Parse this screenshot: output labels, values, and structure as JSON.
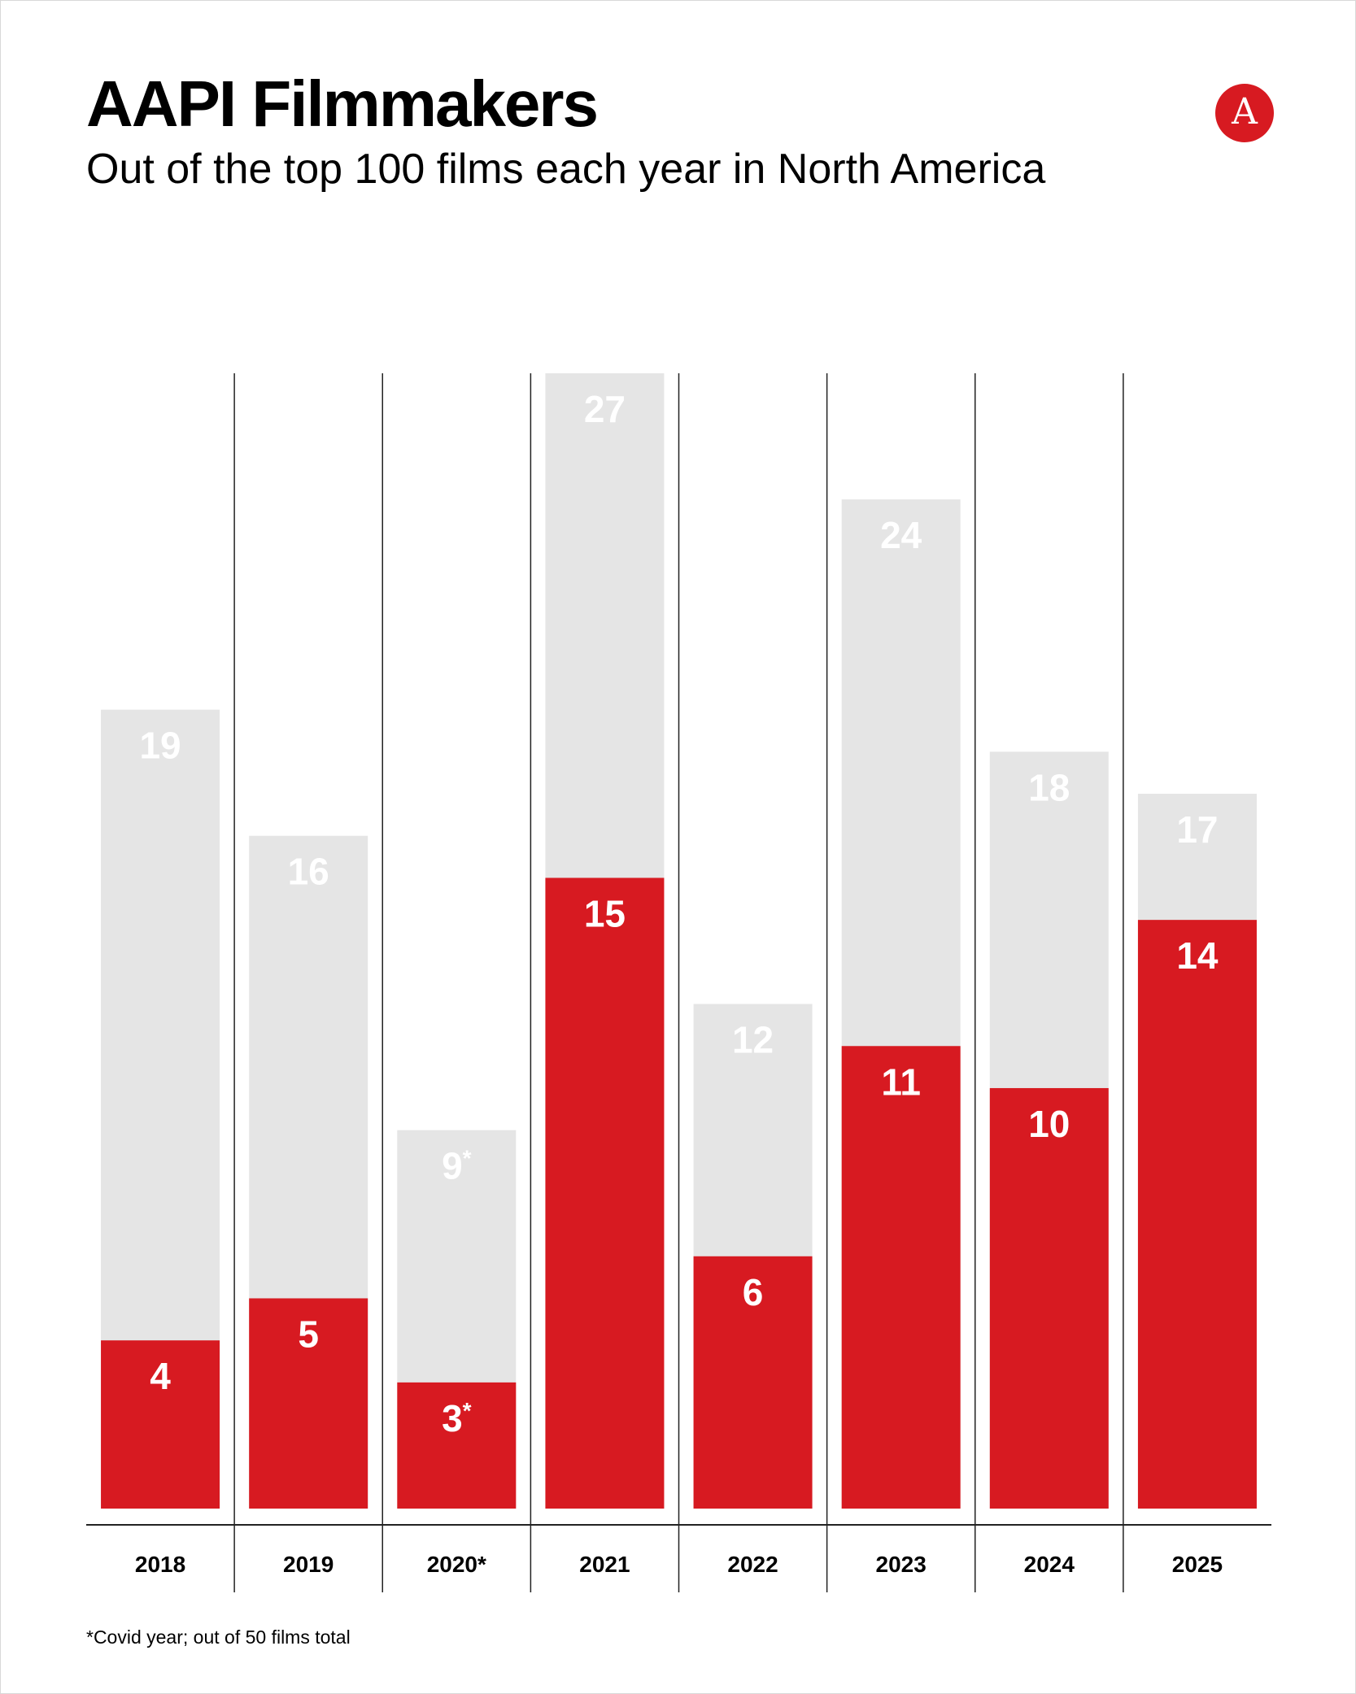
{
  "header": {
    "title": "AAPI Filmmakers",
    "subtitle": "Out of the top 100 films each year in North America"
  },
  "logo": {
    "letter": "A",
    "color": "#d71a21",
    "icon": "publication-logo-icon"
  },
  "footnote": "*Covid year; out of 50 films total",
  "colors": {
    "accent": "#d71a21",
    "total_bar": "#e5e5e5",
    "divider": "#222222"
  },
  "chart_data": {
    "type": "bar",
    "title": "AAPI Filmmakers",
    "subtitle": "Out of the top 100 films each year in North America",
    "categories": [
      "2018",
      "2019",
      "2020*",
      "2021",
      "2022",
      "2023",
      "2024",
      "2025"
    ],
    "series": [
      {
        "values": [
          19,
          16,
          9,
          27,
          12,
          24,
          18,
          17
        ],
        "labels": [
          "19",
          "16",
          "9*",
          "27",
          "12",
          "24",
          "18",
          "17"
        ],
        "color": "#e5e5e5"
      },
      {
        "values": [
          4,
          5,
          3,
          15,
          6,
          11,
          10,
          14
        ],
        "labels": [
          "4",
          "5",
          "3*",
          "15",
          "6",
          "11",
          "10",
          "14"
        ],
        "color": "#d71a21"
      }
    ],
    "ylim": [
      0,
      27
    ],
    "overlay": true,
    "grid": false,
    "legend": "none",
    "xlabel": "",
    "ylabel": ""
  }
}
